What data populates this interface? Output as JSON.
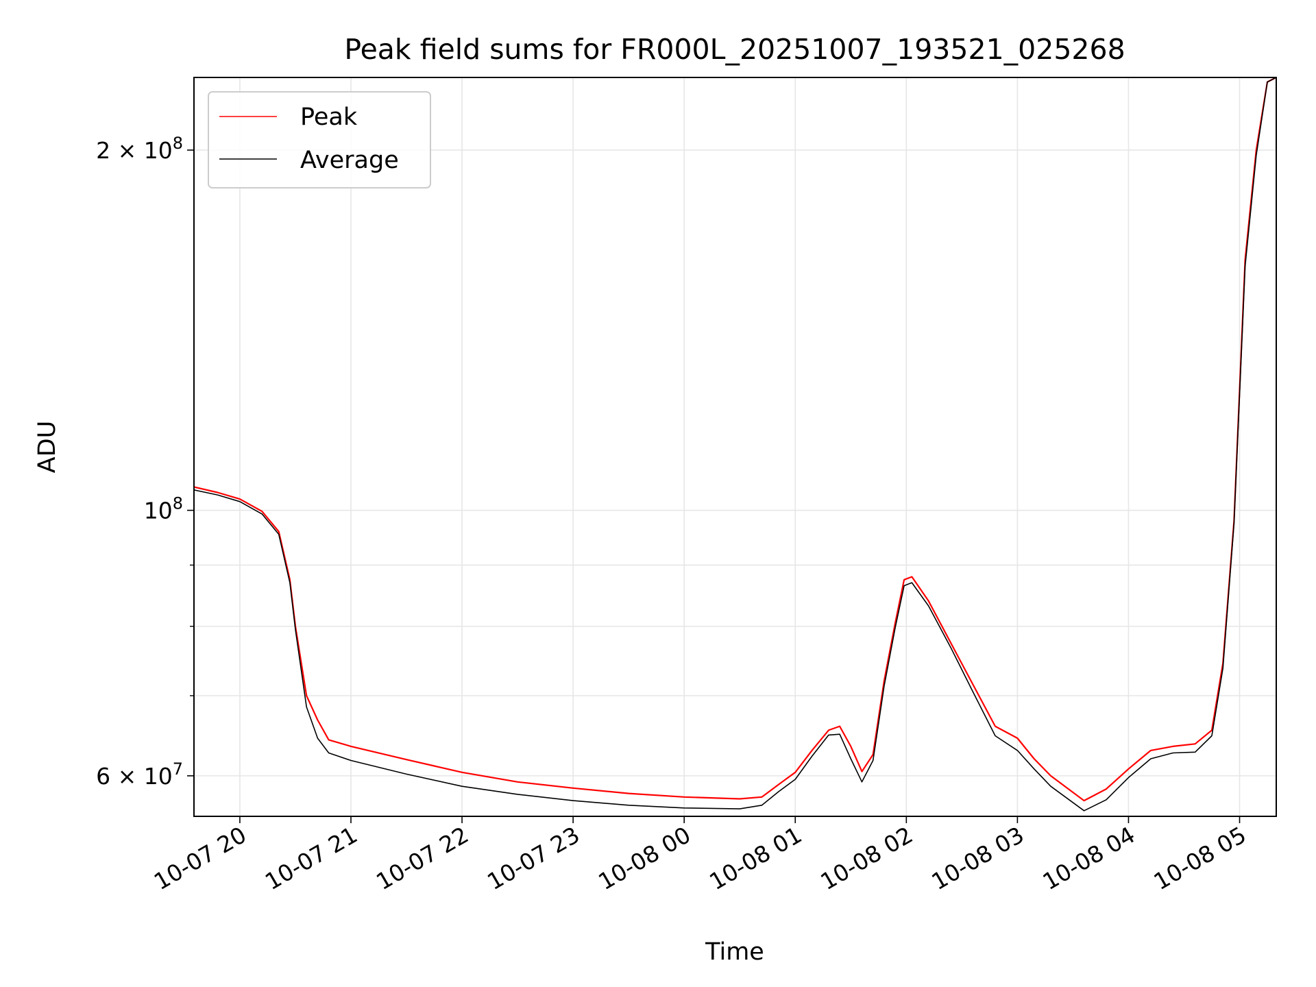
{
  "chart_data": {
    "type": "line",
    "title": "Peak field sums for FR000L_20251007_193521_025268",
    "xlabel": "Time",
    "ylabel": "ADU",
    "yscale": "log",
    "grid": true,
    "legend_position": "top-left",
    "xlim_hours": [
      -0.413,
      9.33
    ],
    "ylim": [
      55500000,
      230000000
    ],
    "x_ticks": [
      {
        "value": 0,
        "label": "10-07 20"
      },
      {
        "value": 1,
        "label": "10-07 21"
      },
      {
        "value": 2,
        "label": "10-07 22"
      },
      {
        "value": 3,
        "label": "10-07 23"
      },
      {
        "value": 4,
        "label": "10-08 00"
      },
      {
        "value": 5,
        "label": "10-08 01"
      },
      {
        "value": 6,
        "label": "10-08 02"
      },
      {
        "value": 7,
        "label": "10-08 03"
      },
      {
        "value": 8,
        "label": "10-08 04"
      },
      {
        "value": 9,
        "label": "10-08 05"
      }
    ],
    "y_major_ticks": [
      {
        "value": 60000000,
        "mantissa": "6",
        "base": "10",
        "exp": "7"
      },
      {
        "value": 100000000,
        "mantissa": "",
        "base": "10",
        "exp": "8"
      },
      {
        "value": 200000000,
        "mantissa": "2",
        "base": "10",
        "exp": "8"
      }
    ],
    "y_minor_ticks": [
      70000000,
      80000000,
      90000000
    ],
    "series": [
      {
        "name": "Peak",
        "color": "#ff0000",
        "x": [
          -0.413,
          -0.2,
          0.0,
          0.2,
          0.35,
          0.45,
          0.5,
          0.6,
          0.7,
          0.8,
          1.0,
          1.5,
          2.0,
          2.5,
          3.0,
          3.5,
          4.0,
          4.5,
          4.7,
          4.85,
          5.0,
          5.15,
          5.3,
          5.4,
          5.5,
          5.6,
          5.7,
          5.8,
          5.9,
          5.98,
          6.05,
          6.2,
          6.4,
          6.6,
          6.8,
          7.0,
          7.15,
          7.3,
          7.6,
          7.8,
          8.0,
          8.2,
          8.4,
          8.6,
          8.75,
          8.85,
          8.95,
          9.05,
          9.15,
          9.25,
          9.33
        ],
        "values": [
          104600000,
          103500000,
          102200000,
          99800000,
          96000000,
          87500000,
          80000000,
          70000000,
          66800000,
          64300000,
          63500000,
          61900000,
          60400000,
          59300000,
          58600000,
          58000000,
          57600000,
          57400000,
          57600000,
          59000000,
          60400000,
          63000000,
          65500000,
          66000000,
          63500000,
          60500000,
          62500000,
          72000000,
          80500000,
          87500000,
          88000000,
          84000000,
          77500000,
          71500000,
          66000000,
          64500000,
          62000000,
          60000000,
          57200000,
          58500000,
          60800000,
          63000000,
          63500000,
          63800000,
          65500000,
          74500000,
          98000000,
          162000000,
          200000000,
          228000000,
          230000000
        ]
      },
      {
        "name": "Average",
        "color": "#000000",
        "x": [
          -0.413,
          -0.2,
          0.0,
          0.2,
          0.35,
          0.45,
          0.5,
          0.6,
          0.7,
          0.8,
          1.0,
          1.5,
          2.0,
          2.5,
          3.0,
          3.5,
          4.0,
          4.5,
          4.7,
          4.85,
          5.0,
          5.15,
          5.3,
          5.4,
          5.5,
          5.6,
          5.7,
          5.8,
          5.9,
          5.98,
          6.05,
          6.2,
          6.4,
          6.6,
          6.8,
          7.0,
          7.15,
          7.3,
          7.6,
          7.8,
          8.0,
          8.2,
          8.4,
          8.6,
          8.75,
          8.85,
          8.95,
          9.05,
          9.15,
          9.25,
          9.33
        ],
        "values": [
          104000000,
          103000000,
          101700000,
          99300000,
          95500000,
          87000000,
          79500000,
          68500000,
          64500000,
          62700000,
          61800000,
          60200000,
          58800000,
          57900000,
          57200000,
          56700000,
          56400000,
          56300000,
          56700000,
          58200000,
          59600000,
          62300000,
          64900000,
          65000000,
          62000000,
          59300000,
          61800000,
          71300000,
          79800000,
          86500000,
          87000000,
          83200000,
          76800000,
          70500000,
          64800000,
          63000000,
          60800000,
          58800000,
          56100000,
          57300000,
          59800000,
          62000000,
          62700000,
          62800000,
          64800000,
          73800000,
          97500000,
          160000000,
          198000000,
          228000000,
          230000000
        ]
      }
    ]
  }
}
